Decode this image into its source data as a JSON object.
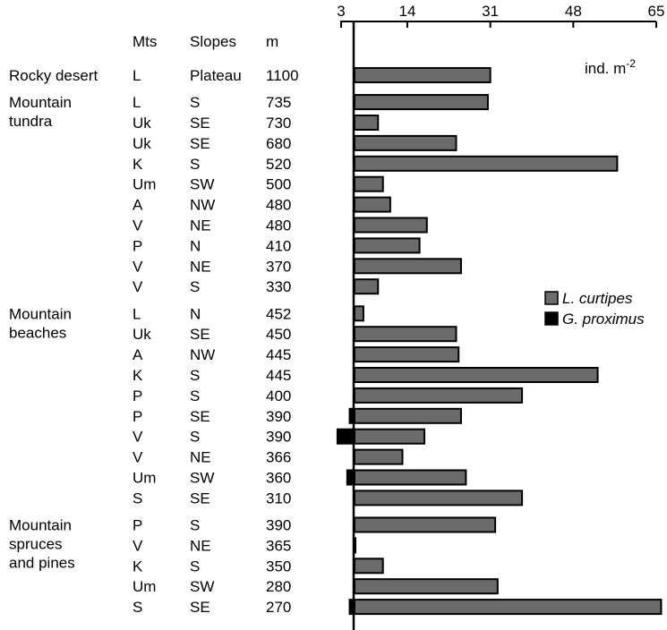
{
  "chart_data": {
    "type": "bar",
    "orientation": "horizontal",
    "axis": {
      "ticks": [
        3,
        14,
        31,
        48,
        65
      ],
      "tick_labels": [
        "3",
        "14",
        "31",
        "48",
        "65"
      ],
      "xlim": [
        -3,
        65
      ],
      "unit_label": "ind. m",
      "unit_exponent": "-2",
      "position": "top"
    },
    "table_headers": {
      "mts": "Mts",
      "slopes": "Slopes",
      "m": "m"
    },
    "legend": {
      "placement": "right",
      "items": [
        {
          "key": "lc",
          "label": "L. curtipes",
          "color": "#6b6b6b"
        },
        {
          "key": "gp",
          "label": "G. proximus",
          "color": "#000000"
        }
      ]
    },
    "groups": [
      {
        "lines": [
          "Rocky desert"
        ],
        "rows": [
          {
            "mts": "L",
            "slope": "Plateau",
            "m": "1100",
            "lc": 31,
            "gp": 0
          }
        ]
      },
      {
        "lines": [
          "Mountain",
          "tundra"
        ],
        "rows": [
          {
            "mts": "L",
            "slope": "S",
            "m": "735",
            "lc": 30.5,
            "gp": 0
          },
          {
            "mts": "Uk",
            "slope": "SE",
            "m": "730",
            "lc": 8,
            "gp": 0
          },
          {
            "mts": "Uk",
            "slope": "SE",
            "m": "680",
            "lc": 24,
            "gp": 0
          },
          {
            "mts": "K",
            "slope": "S",
            "m": "520",
            "lc": 57,
            "gp": 0
          },
          {
            "mts": "Um",
            "slope": "SW",
            "m": "500",
            "lc": 9,
            "gp": 0
          },
          {
            "mts": "A",
            "slope": "NW",
            "m": "480",
            "lc": 10.5,
            "gp": 0
          },
          {
            "mts": "V",
            "slope": "NE",
            "m": "480",
            "lc": 18,
            "gp": 0
          },
          {
            "mts": "P",
            "slope": "N",
            "m": "410",
            "lc": 16.5,
            "gp": 0
          },
          {
            "mts": "V",
            "slope": "NE",
            "m": "370",
            "lc": 25,
            "gp": 0
          },
          {
            "mts": "V",
            "slope": "S",
            "m": "330",
            "lc": 8,
            "gp": 0
          }
        ]
      },
      {
        "lines": [
          "Mountain",
          "beaches"
        ],
        "rows": [
          {
            "mts": "L",
            "slope": "N",
            "m": "452",
            "lc": 5,
            "gp": 0
          },
          {
            "mts": "Uk",
            "slope": "SE",
            "m": "450",
            "lc": 24,
            "gp": 0
          },
          {
            "mts": "A",
            "slope": "NW",
            "m": "445",
            "lc": 24.5,
            "gp": 0
          },
          {
            "mts": "K",
            "slope": "S",
            "m": "445",
            "lc": 53,
            "gp": 0
          },
          {
            "mts": "P",
            "slope": "S",
            "m": "400",
            "lc": 37.5,
            "gp": 0
          },
          {
            "mts": "P",
            "slope": "SE",
            "m": "390",
            "lc": 25,
            "gp": 1
          },
          {
            "mts": "V",
            "slope": "S",
            "m": "390",
            "lc": 17.5,
            "gp": 3.5
          },
          {
            "mts": "V",
            "slope": "NE",
            "m": "366",
            "lc": 13,
            "gp": 0
          },
          {
            "mts": "Um",
            "slope": "SW",
            "m": "360",
            "lc": 26,
            "gp": 1.5
          },
          {
            "mts": "S",
            "slope": "SE",
            "m": "310",
            "lc": 37.5,
            "gp": 0
          }
        ]
      },
      {
        "lines": [
          "Mountain",
          "spruces",
          "and pines"
        ],
        "rows": [
          {
            "mts": "P",
            "slope": "S",
            "m": "390",
            "lc": 32,
            "gp": 0
          },
          {
            "mts": "V",
            "slope": "NE",
            "m": "365",
            "lc": 3,
            "gp": 0
          },
          {
            "mts": "K",
            "slope": "S",
            "m": "350",
            "lc": 9,
            "gp": 0
          },
          {
            "mts": "Um",
            "slope": "SW",
            "m": "280",
            "lc": 32.5,
            "gp": 0
          },
          {
            "mts": "S",
            "slope": "SE",
            "m": "270",
            "lc": 66,
            "gp": 1
          }
        ]
      }
    ]
  }
}
